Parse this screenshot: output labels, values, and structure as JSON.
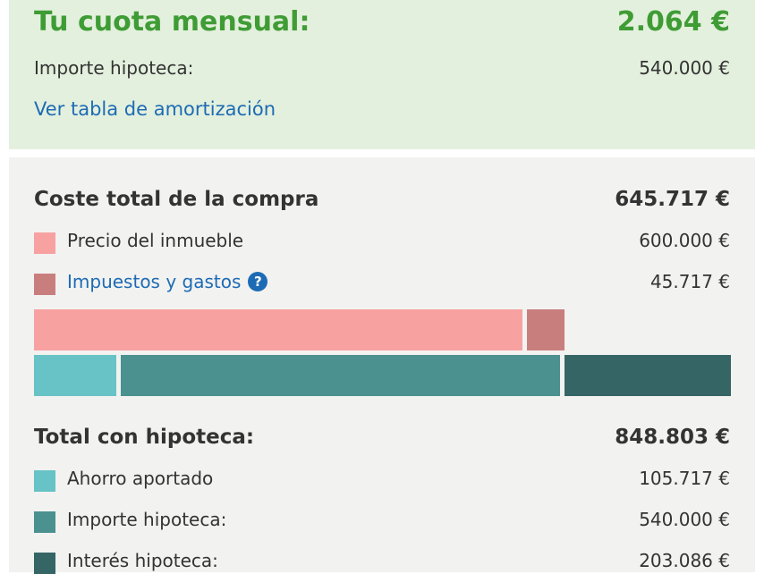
{
  "monthly": {
    "title": "Tu cuota mensual:",
    "value": "2.064 €",
    "mortgage_label": "Importe hipoteca:",
    "mortgage_value": "540.000 €",
    "amortization_link": "Ver tabla de amortización"
  },
  "purchase": {
    "title": "Coste total de la compra",
    "total": "645.717 €",
    "items": [
      {
        "label": "Precio del inmueble",
        "value": "600.000 €",
        "color": "#f7a1a1"
      },
      {
        "label": "Impuestos y gastos",
        "value": "45.717 €",
        "color": "#c97e7e"
      }
    ],
    "help_icon": "question-circle-icon",
    "help_glyph": "?"
  },
  "bars": {
    "purchase": [
      {
        "name": "Precio del inmueble",
        "value": 600000,
        "color": "#f7a1a1"
      },
      {
        "name": "Impuestos y gastos",
        "value": 45717,
        "color": "#c97e7e"
      }
    ],
    "mortgage": [
      {
        "name": "Ahorro aportado",
        "value": 105717,
        "color": "#67c3c5"
      },
      {
        "name": "Importe hipoteca",
        "value": 540000,
        "color": "#4a9190"
      },
      {
        "name": "Interés hipoteca",
        "value": 203086,
        "color": "#356565"
      }
    ]
  },
  "mortgage_total": {
    "title": "Total con hipoteca:",
    "total": "848.803 €",
    "items": [
      {
        "label": "Ahorro aportado",
        "value": "105.717 €",
        "color": "#67c3c5"
      },
      {
        "label": "Importe hipoteca:",
        "value": "540.000 €",
        "color": "#4a9190"
      },
      {
        "label": "Interés hipoteca:",
        "value": "203.086 €",
        "color": "#356565"
      }
    ]
  }
}
